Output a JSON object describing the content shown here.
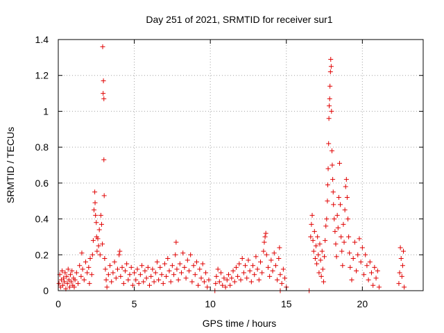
{
  "chart_data": {
    "type": "scatter",
    "title": "Day 251 of 2021, SRMTID for receiver sur1",
    "xlabel": "GPS time / hours",
    "ylabel": "SRMTID / TECUs",
    "xlim": [
      0,
      24
    ],
    "ylim": [
      0,
      1.4
    ],
    "xticks": [
      0,
      5,
      10,
      15,
      20
    ],
    "xtick_labels": [
      "0",
      "5",
      "10",
      "15",
      "20"
    ],
    "yticks": [
      0,
      0.2,
      0.4,
      0.6,
      0.8,
      1,
      1.2,
      1.4
    ],
    "ytick_labels": [
      "0",
      "0.2",
      "0.4",
      "0.6",
      "0.8",
      "1",
      "1.2",
      "1.4"
    ],
    "grid": true,
    "marker": "+",
    "color": "#e00000",
    "series": [
      {
        "name": "sur1",
        "points": [
          [
            0.05,
            0.04
          ],
          [
            0.1,
            0.09
          ],
          [
            0.15,
            0.02
          ],
          [
            0.2,
            0.06
          ],
          [
            0.25,
            0.11
          ],
          [
            0.3,
            0.03
          ],
          [
            0.35,
            0.07
          ],
          [
            0.4,
            0.05
          ],
          [
            0.45,
            0.1
          ],
          [
            0.5,
            0.01
          ],
          [
            0.55,
            0.08
          ],
          [
            0.6,
            0.04
          ],
          [
            0.65,
            0.12
          ],
          [
            0.7,
            0.06
          ],
          [
            0.75,
            0.02
          ],
          [
            0.8,
            0.09
          ],
          [
            0.85,
            0.05
          ],
          [
            0.9,
            0.11
          ],
          [
            0.95,
            0.03
          ],
          [
            1.0,
            0.07
          ],
          [
            1.05,
            0.02
          ],
          [
            1.1,
            0.06
          ],
          [
            1.2,
            0.1
          ],
          [
            1.3,
            0.04
          ],
          [
            1.4,
            0.14
          ],
          [
            1.5,
            0.08
          ],
          [
            1.55,
            0.21
          ],
          [
            1.6,
            0.12
          ],
          [
            1.7,
            0.06
          ],
          [
            1.8,
            0.16
          ],
          [
            1.9,
            0.1
          ],
          [
            2.0,
            0.13
          ],
          [
            2.05,
            0.04
          ],
          [
            2.1,
            0.18
          ],
          [
            2.2,
            0.09
          ],
          [
            2.25,
            0.2
          ],
          [
            2.3,
            0.28
          ],
          [
            2.35,
            0.45
          ],
          [
            2.4,
            0.55
          ],
          [
            2.42,
            0.49
          ],
          [
            2.45,
            0.42
          ],
          [
            2.5,
            0.38
          ],
          [
            2.52,
            0.3
          ],
          [
            2.55,
            0.22
          ],
          [
            2.6,
            0.29
          ],
          [
            2.65,
            0.25
          ],
          [
            2.7,
            0.34
          ],
          [
            2.75,
            0.2
          ],
          [
            2.8,
            0.42
          ],
          [
            2.85,
            0.37
          ],
          [
            2.9,
            0.26
          ],
          [
            2.92,
            1.36
          ],
          [
            2.95,
            1.1
          ],
          [
            2.97,
            1.17
          ],
          [
            3.0,
            1.07
          ],
          [
            3.0,
            0.73
          ],
          [
            3.02,
            0.53
          ],
          [
            3.05,
            0.18
          ],
          [
            3.1,
            0.12
          ],
          [
            3.15,
            0.06
          ],
          [
            3.2,
            0.02
          ],
          [
            3.3,
            0.09
          ],
          [
            3.4,
            0.14
          ],
          [
            3.5,
            0.05
          ],
          [
            3.6,
            0.1
          ],
          [
            3.7,
            0.16
          ],
          [
            3.8,
            0.07
          ],
          [
            3.9,
            0.12
          ],
          [
            4.0,
            0.2
          ],
          [
            4.05,
            0.22
          ],
          [
            4.1,
            0.08
          ],
          [
            4.2,
            0.13
          ],
          [
            4.3,
            0.04
          ],
          [
            4.4,
            0.11
          ],
          [
            4.5,
            0.15
          ],
          [
            4.6,
            0.06
          ],
          [
            4.7,
            0.09
          ],
          [
            4.8,
            0.13
          ],
          [
            4.9,
            0.03
          ],
          [
            5.0,
            0.1
          ],
          [
            5.1,
            0.06
          ],
          [
            5.2,
            0.12
          ],
          [
            5.3,
            0.04
          ],
          [
            5.4,
            0.09
          ],
          [
            5.5,
            0.14
          ],
          [
            5.6,
            0.05
          ],
          [
            5.7,
            0.11
          ],
          [
            5.8,
            0.07
          ],
          [
            5.9,
            0.13
          ],
          [
            6.0,
            0.03
          ],
          [
            6.1,
            0.08
          ],
          [
            6.2,
            0.12
          ],
          [
            6.3,
            0.05
          ],
          [
            6.4,
            0.1
          ],
          [
            6.5,
            0.16
          ],
          [
            6.6,
            0.06
          ],
          [
            6.7,
            0.13
          ],
          [
            6.8,
            0.09
          ],
          [
            6.9,
            0.04
          ],
          [
            7.0,
            0.15
          ],
          [
            7.1,
            0.08
          ],
          [
            7.2,
            0.18
          ],
          [
            7.3,
            0.11
          ],
          [
            7.4,
            0.05
          ],
          [
            7.5,
            0.14
          ],
          [
            7.6,
            0.09
          ],
          [
            7.7,
            0.2
          ],
          [
            7.75,
            0.27
          ],
          [
            7.8,
            0.12
          ],
          [
            7.9,
            0.06
          ],
          [
            8.0,
            0.15
          ],
          [
            8.1,
            0.1
          ],
          [
            8.2,
            0.21
          ],
          [
            8.3,
            0.13
          ],
          [
            8.4,
            0.07
          ],
          [
            8.5,
            0.17
          ],
          [
            8.6,
            0.11
          ],
          [
            8.7,
            0.2
          ],
          [
            8.8,
            0.05
          ],
          [
            8.9,
            0.14
          ],
          [
            9.0,
            0.09
          ],
          [
            9.1,
            0.16
          ],
          [
            9.2,
            0.03
          ],
          [
            9.3,
            0.12
          ],
          [
            9.4,
            0.07
          ],
          [
            9.5,
            0.15
          ],
          [
            9.6,
            0.05
          ],
          [
            9.7,
            0.1
          ],
          [
            9.8,
            0.02
          ],
          [
            9.9,
            0.06
          ],
          [
            10.3,
            0.0
          ],
          [
            10.35,
            0.04
          ],
          [
            10.4,
            0.08
          ],
          [
            10.5,
            0.12
          ],
          [
            10.6,
            0.05
          ],
          [
            10.7,
            0.1
          ],
          [
            10.8,
            0.03
          ],
          [
            10.9,
            0.07
          ],
          [
            11.0,
            0.02
          ],
          [
            11.1,
            0.06
          ],
          [
            11.2,
            0.09
          ],
          [
            11.3,
            0.03
          ],
          [
            11.4,
            0.07
          ],
          [
            11.5,
            0.11
          ],
          [
            11.6,
            0.05
          ],
          [
            11.7,
            0.13
          ],
          [
            11.8,
            0.08
          ],
          [
            11.9,
            0.15
          ],
          [
            12.0,
            0.06
          ],
          [
            12.1,
            0.18
          ],
          [
            12.2,
            0.1
          ],
          [
            12.3,
            0.14
          ],
          [
            12.4,
            0.07
          ],
          [
            12.5,
            0.17
          ],
          [
            12.6,
            0.11
          ],
          [
            12.7,
            0.05
          ],
          [
            12.8,
            0.14
          ],
          [
            12.9,
            0.09
          ],
          [
            13.0,
            0.19
          ],
          [
            13.1,
            0.12
          ],
          [
            13.2,
            0.06
          ],
          [
            13.3,
            0.16
          ],
          [
            13.4,
            0.1
          ],
          [
            13.5,
            0.22
          ],
          [
            13.55,
            0.27
          ],
          [
            13.6,
            0.3
          ],
          [
            13.65,
            0.32
          ],
          [
            13.7,
            0.2
          ],
          [
            13.8,
            0.13
          ],
          [
            13.9,
            0.08
          ],
          [
            14.0,
            0.17
          ],
          [
            14.1,
            0.11
          ],
          [
            14.2,
            0.21
          ],
          [
            14.3,
            0.14
          ],
          [
            14.4,
            0.06
          ],
          [
            14.5,
            0.18
          ],
          [
            14.55,
            0.24
          ],
          [
            14.6,
            0.09
          ],
          [
            14.7,
            0.04
          ],
          [
            14.8,
            0.12
          ],
          [
            14.9,
            0.07
          ],
          [
            15.0,
            0.02
          ],
          [
            14.6,
            0.0
          ],
          [
            16.5,
            0.0
          ],
          [
            16.6,
            0.3
          ],
          [
            16.65,
            0.37
          ],
          [
            16.7,
            0.42
          ],
          [
            16.75,
            0.28
          ],
          [
            16.8,
            0.22
          ],
          [
            16.85,
            0.33
          ],
          [
            16.9,
            0.18
          ],
          [
            16.95,
            0.25
          ],
          [
            17.0,
            0.15
          ],
          [
            17.05,
            0.3
          ],
          [
            17.1,
            0.2
          ],
          [
            17.15,
            0.1
          ],
          [
            17.2,
            0.26
          ],
          [
            17.25,
            0.17
          ],
          [
            17.3,
            0.08
          ],
          [
            17.35,
            0.22
          ],
          [
            17.4,
            0.12
          ],
          [
            17.45,
            0.05
          ],
          [
            17.5,
            0.19
          ],
          [
            17.55,
            0.28
          ],
          [
            17.6,
            0.36
          ],
          [
            17.65,
            0.4
          ],
          [
            17.7,
            0.5
          ],
          [
            17.72,
            0.59
          ],
          [
            17.75,
            0.68
          ],
          [
            17.78,
            0.82
          ],
          [
            17.8,
            0.96
          ],
          [
            17.82,
            1.03
          ],
          [
            17.85,
            1.07
          ],
          [
            17.87,
            1.14
          ],
          [
            17.9,
            1.22
          ],
          [
            17.92,
            1.29
          ],
          [
            17.95,
            1.25
          ],
          [
            17.97,
            1.0
          ],
          [
            18.0,
            0.78
          ],
          [
            18.02,
            0.7
          ],
          [
            18.05,
            0.62
          ],
          [
            18.08,
            0.55
          ],
          [
            18.1,
            0.48
          ],
          [
            18.15,
            0.4
          ],
          [
            18.2,
            0.33
          ],
          [
            18.25,
            0.26
          ],
          [
            18.3,
            0.19
          ],
          [
            18.35,
            0.42
          ],
          [
            18.4,
            0.35
          ],
          [
            18.45,
            0.52
          ],
          [
            18.5,
            0.71
          ],
          [
            18.55,
            0.48
          ],
          [
            18.6,
            0.3
          ],
          [
            18.65,
            0.22
          ],
          [
            18.7,
            0.14
          ],
          [
            18.75,
            0.37
          ],
          [
            18.8,
            0.27
          ],
          [
            18.85,
            0.45
          ],
          [
            18.9,
            0.58
          ],
          [
            18.95,
            0.62
          ],
          [
            19.0,
            0.52
          ],
          [
            19.05,
            0.4
          ],
          [
            19.1,
            0.3
          ],
          [
            19.15,
            0.21
          ],
          [
            19.2,
            0.13
          ],
          [
            19.3,
            0.06
          ],
          [
            19.4,
            0.18
          ],
          [
            19.5,
            0.27
          ],
          [
            19.6,
            0.11
          ],
          [
            19.7,
            0.2
          ],
          [
            19.8,
            0.29
          ],
          [
            19.9,
            0.16
          ],
          [
            20.0,
            0.24
          ],
          [
            20.1,
            0.09
          ],
          [
            20.2,
            0.2
          ],
          [
            20.3,
            0.14
          ],
          [
            20.4,
            0.06
          ],
          [
            20.5,
            0.16
          ],
          [
            20.6,
            0.1
          ],
          [
            20.7,
            0.03
          ],
          [
            20.8,
            0.13
          ],
          [
            20.9,
            0.07
          ],
          [
            21.0,
            0.11
          ],
          [
            21.1,
            0.02
          ],
          [
            22.4,
            0.04
          ],
          [
            22.45,
            0.1
          ],
          [
            22.5,
            0.24
          ],
          [
            22.55,
            0.18
          ],
          [
            22.6,
            0.08
          ],
          [
            22.65,
            0.14
          ],
          [
            22.7,
            0.22
          ],
          [
            22.75,
            0.02
          ]
        ]
      }
    ]
  }
}
